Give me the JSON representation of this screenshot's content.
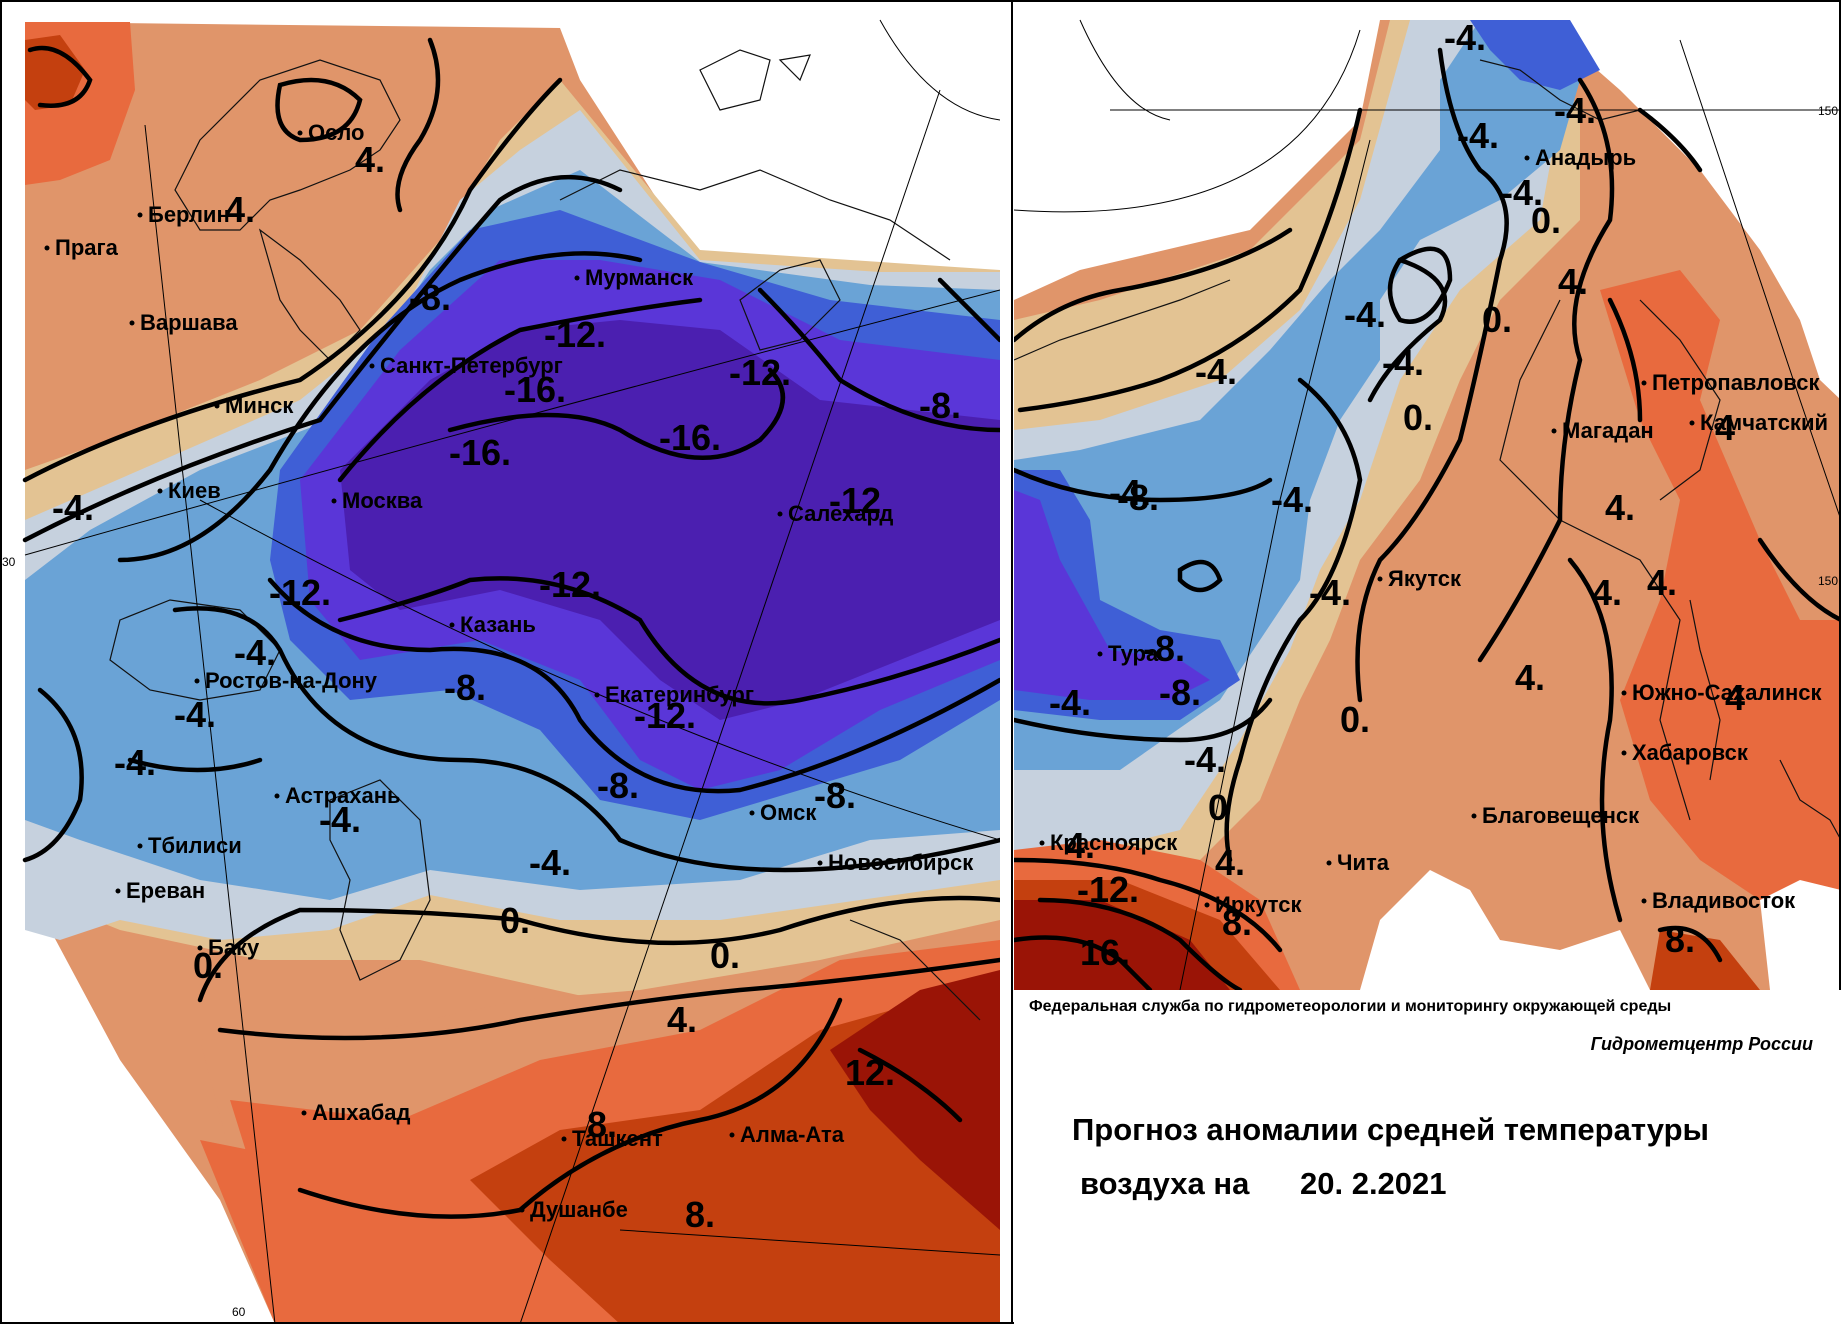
{
  "map": {
    "colors": {
      "minus16": "#4b1fb0",
      "minus12": "#5a36d8",
      "minus8": "#3f5fd6",
      "minus4": "#6aa3d6",
      "minus0": "#c6d1de",
      "plus0": "#e3c393",
      "plus4": "#e0956a",
      "plus8": "#e86a3e",
      "plus12": "#c4400f",
      "plus16": "#9a1406"
    },
    "cities_left": [
      {
        "name": "Осло"
      },
      {
        "name": "Берлин"
      },
      {
        "name": "Прага"
      },
      {
        "name": "Варшава"
      },
      {
        "name": "Мурманск"
      },
      {
        "name": "Санкт-Петербург"
      },
      {
        "name": "Минск"
      },
      {
        "name": "Киев"
      },
      {
        "name": "Москва"
      },
      {
        "name": "Салехард"
      },
      {
        "name": "Казань"
      },
      {
        "name": "Ростов-на-Дону"
      },
      {
        "name": "Екатеринбург"
      },
      {
        "name": "Астрахань"
      },
      {
        "name": "Омск"
      },
      {
        "name": "Тбилиси"
      },
      {
        "name": "Новосибирск"
      },
      {
        "name": "Ереван"
      },
      {
        "name": "Баку"
      },
      {
        "name": "Ашхабад"
      },
      {
        "name": "Ташкент"
      },
      {
        "name": "Алма-Ата"
      },
      {
        "name": "Душанбе"
      }
    ],
    "cities_right": [
      {
        "name": "Анадырь"
      },
      {
        "name": "Петропавловск"
      },
      {
        "name": "Камчатский"
      },
      {
        "name": "Магадан"
      },
      {
        "name": "Якутск"
      },
      {
        "name": "Тура"
      },
      {
        "name": "Южно-Сахалинск"
      },
      {
        "name": "Хабаровск"
      },
      {
        "name": "Благовещенск"
      },
      {
        "name": "Красноярск"
      },
      {
        "name": "Чита"
      },
      {
        "name": "Иркутск"
      },
      {
        "name": "Владивосток"
      }
    ],
    "contour_labels_left": [
      "4.",
      "4.",
      "-8.",
      "-12.",
      "-16.",
      "-12.",
      "-16.",
      "-16.",
      "-8.",
      "-12",
      "-4.",
      "-12.",
      "-12.",
      "-4.",
      "-8.",
      "-4.",
      "-12.",
      "-4.",
      "-8.",
      "-8.",
      "-4.",
      "-4.",
      "0.",
      "0.",
      "0.",
      "4.",
      "12.",
      "8.",
      "8."
    ],
    "contour_labels_right": [
      "-4.",
      "-4.",
      "-4.",
      "-4.",
      "0.",
      "4.",
      "-4.",
      "0.",
      "-4.",
      "-4.",
      "0.",
      "-8.",
      "-4.",
      "-4.",
      "4.",
      "-4.",
      "4.",
      "4.",
      "-8.",
      "-8.",
      "-4.",
      "-4.",
      "0.",
      "4.",
      "0",
      "4.",
      "-12.",
      "16.",
      "8.",
      "4.",
      "8.",
      "4",
      "4"
    ],
    "grid_labels": [
      "30",
      "60",
      "150",
      "150"
    ]
  },
  "info": {
    "agency": "Федеральная служба по гидрометеорологии и мониторингу окружающей среды",
    "center": "Гидрометцентр России",
    "title_line1": "Прогноз аномалии средней температуры",
    "title_line2": "воздуха на",
    "date": "20. 2.2021"
  }
}
